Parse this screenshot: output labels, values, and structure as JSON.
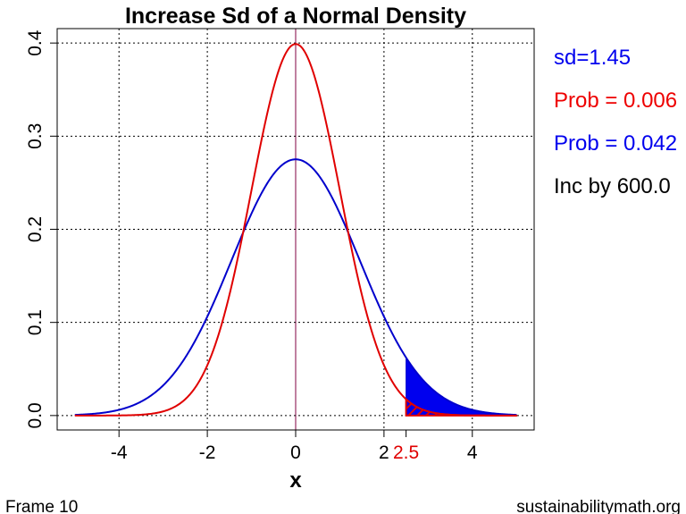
{
  "chart_data": {
    "type": "line",
    "title": "Increase Sd of a Normal Density",
    "xlabel": "x",
    "ylabel": "",
    "xlim": [
      -5.4,
      5.4
    ],
    "ylim": [
      -0.0155,
      0.4155
    ],
    "x_ticks": [
      -4,
      -2,
      0,
      2,
      4
    ],
    "x_tick_labels": [
      "-4",
      "-2",
      "0",
      "2",
      "4"
    ],
    "y_ticks": [
      0.0,
      0.1,
      0.2,
      0.3,
      0.4
    ],
    "y_tick_labels": [
      "0.0",
      "0.1",
      "0.2",
      "0.3",
      "0.4"
    ],
    "grid": true,
    "curve_range": [
      -5,
      5
    ],
    "series": [
      {
        "distribution": "normal",
        "mean": 0,
        "sd": 1,
        "color": "#e00000"
      },
      {
        "distribution": "normal",
        "mean": 0,
        "sd": 1.45,
        "color": "#0000cc"
      }
    ],
    "cutoff": {
      "value": 2.5,
      "label": "2.5",
      "color": "#e00000"
    },
    "annotations": [
      {
        "text": "sd=1.45",
        "color": "#0000ee"
      },
      {
        "text": "Prob = 0.006",
        "color": "#ee0000"
      },
      {
        "text": "Prob = 0.042",
        "color": "#0000ee"
      },
      {
        "text": "Inc by 600.0",
        "color": "#000000"
      }
    ]
  },
  "footer": {
    "frame": "Frame 10",
    "site": "sustainabilitymath.org"
  }
}
